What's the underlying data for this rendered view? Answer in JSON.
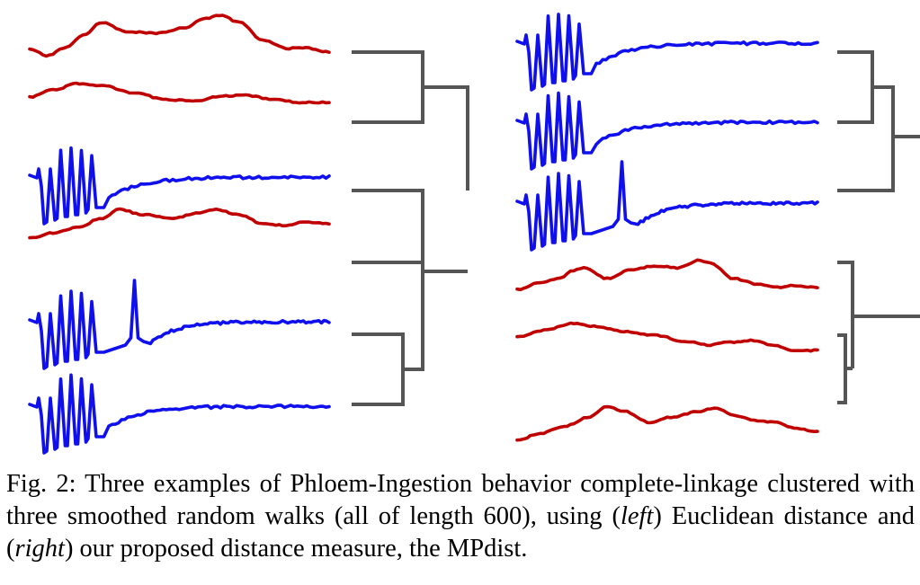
{
  "colors": {
    "random_walk": "#c00000",
    "ingestion": "#1010ee",
    "dendrogram": "#555555"
  },
  "panels": [
    {
      "name": "left",
      "distance": "Euclidean distance",
      "leaves": [
        "random-walk",
        "random-walk",
        "ingestion",
        "random-walk",
        "ingestion",
        "ingestion"
      ]
    },
    {
      "name": "right",
      "distance": "MPdist",
      "leaves": [
        "ingestion",
        "ingestion",
        "ingestion",
        "random-walk",
        "random-walk",
        "random-walk"
      ]
    }
  ],
  "caption": {
    "part1": "Fig. 2: Three examples of Phloem-Ingestion behavior complete-linkage clustered with three smoothed random walks (all of length 600), using (",
    "left_word": "left",
    "part2": ") Euclidean distance and (",
    "right_word": "right",
    "part3": ") our proposed distance measure, the MPdist."
  }
}
